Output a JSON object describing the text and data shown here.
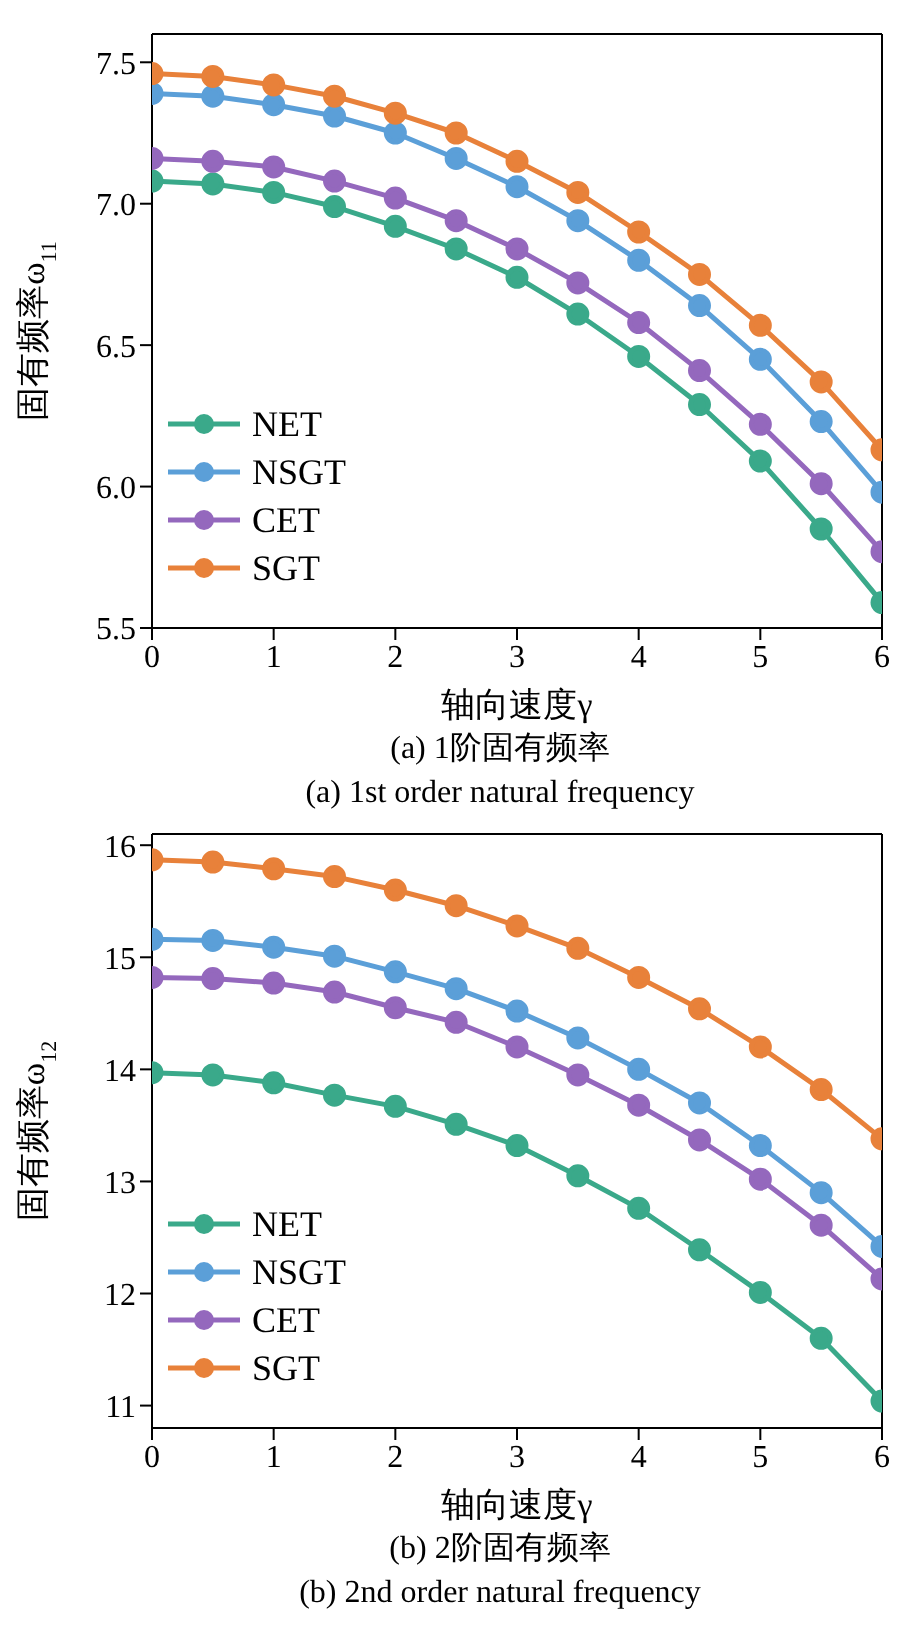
{
  "chart_data": [
    {
      "type": "line",
      "xlabel": "轴向速度γ",
      "ylabel": "固有频率ω$_{11}$",
      "annotations": [
        "(a) 1阶固有频率",
        "(a) 1st order natural frequency"
      ],
      "x": [
        0,
        0.5,
        1,
        1.5,
        2,
        2.5,
        3,
        3.5,
        4,
        4.5,
        5,
        5.5,
        6
      ],
      "xlim": [
        0,
        6
      ],
      "xticks": [
        0,
        1,
        2,
        3,
        4,
        5,
        6
      ],
      "ylim": [
        5.5,
        7.6
      ],
      "yticks": [
        5.5,
        {
          "value": 6,
          "label": "6.0"
        },
        6.5,
        {
          "value": 7,
          "label": "7.0"
        },
        7.5
      ],
      "grid": false,
      "legend": "bottom left",
      "marker": "circle",
      "line_style": "solid",
      "series": [
        {
          "name": "NET",
          "color": "#3aa98a",
          "values": [
            7.08,
            7.07,
            7.04,
            6.99,
            6.92,
            6.84,
            6.74,
            6.61,
            6.46,
            6.29,
            6.09,
            5.85,
            5.59
          ]
        },
        {
          "name": "NSGT",
          "color": "#5b9fd8",
          "values": [
            7.39,
            7.38,
            7.35,
            7.31,
            7.25,
            7.16,
            7.06,
            6.94,
            6.8,
            6.64,
            6.45,
            6.23,
            5.98
          ]
        },
        {
          "name": "CET",
          "color": "#9468bd",
          "values": [
            7.16,
            7.15,
            7.13,
            7.08,
            7.02,
            6.94,
            6.84,
            6.72,
            6.58,
            6.41,
            6.22,
            6.01,
            5.77
          ]
        },
        {
          "name": "SGT",
          "color": "#e8813a",
          "values": [
            7.46,
            7.45,
            7.42,
            7.38,
            7.32,
            7.25,
            7.15,
            7.04,
            6.9,
            6.75,
            6.57,
            6.37,
            6.13
          ]
        }
      ]
    },
    {
      "type": "line",
      "xlabel": "轴向速度γ",
      "ylabel": "固有频率ω$_{12}$",
      "annotations": [
        "(b) 2阶固有频率",
        "(b) 2nd order natural frequency"
      ],
      "x": [
        0,
        0.5,
        1,
        1.5,
        2,
        2.5,
        3,
        3.5,
        4,
        4.5,
        5,
        5.5,
        6
      ],
      "xlim": [
        0,
        6
      ],
      "xticks": [
        0,
        1,
        2,
        3,
        4,
        5,
        6
      ],
      "ylim": [
        10.8,
        16.1
      ],
      "yticks": [
        11,
        12,
        13,
        14,
        15,
        16
      ],
      "grid": false,
      "legend": "bottom left",
      "marker": "circle",
      "line_style": "solid",
      "series": [
        {
          "name": "NET",
          "color": "#3aa98a",
          "values": [
            13.97,
            13.95,
            13.88,
            13.77,
            13.67,
            13.51,
            13.32,
            13.05,
            12.76,
            12.39,
            12.01,
            11.6,
            11.04
          ]
        },
        {
          "name": "NSGT",
          "color": "#5b9fd8",
          "values": [
            15.16,
            15.15,
            15.09,
            15.01,
            14.87,
            14.72,
            14.52,
            14.28,
            14.0,
            13.7,
            13.32,
            12.9,
            12.42
          ]
        },
        {
          "name": "CET",
          "color": "#9468bd",
          "values": [
            14.82,
            14.81,
            14.77,
            14.69,
            14.55,
            14.42,
            14.2,
            13.95,
            13.68,
            13.37,
            13.02,
            12.61,
            12.13
          ]
        },
        {
          "name": "SGT",
          "color": "#e8813a",
          "values": [
            15.87,
            15.85,
            15.79,
            15.72,
            15.6,
            15.46,
            15.28,
            15.08,
            14.82,
            14.54,
            14.2,
            13.82,
            13.38
          ]
        }
      ]
    }
  ]
}
